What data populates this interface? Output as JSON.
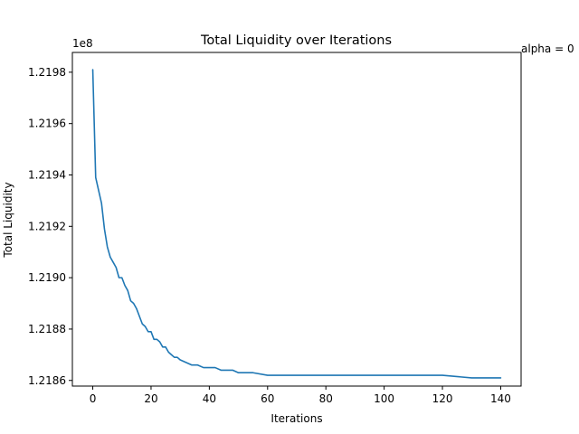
{
  "chart_data": {
    "type": "line",
    "title": "Total Liquidity over Iterations",
    "xlabel": "Iterations",
    "ylabel": "Total Liquidity",
    "y_offset_label": "1e8",
    "annotation": "alpha = 0",
    "xlim": [
      -7,
      147
    ],
    "ylim": [
      1.218578,
      1.219877
    ],
    "x_ticks": [
      0,
      20,
      40,
      60,
      80,
      100,
      120,
      140
    ],
    "x_tick_labels": [
      "0",
      "20",
      "40",
      "60",
      "80",
      "100",
      "120",
      "140"
    ],
    "y_ticks": [
      1.2186,
      1.2188,
      1.219,
      1.2192,
      1.2194,
      1.2196,
      1.2198
    ],
    "y_tick_labels": [
      "1.2186",
      "1.2188",
      "1.2190",
      "1.2192",
      "1.2194",
      "1.2196",
      "1.2198"
    ],
    "grid": false,
    "colors": {
      "line": "#1f77b4",
      "axes": "#000000",
      "background": "#ffffff"
    },
    "series": [
      {
        "x": [
          0,
          1,
          2,
          3,
          4,
          5,
          6,
          7,
          8,
          9,
          10,
          11,
          12,
          13,
          14,
          15,
          16,
          17,
          18,
          19,
          20,
          21,
          22,
          23,
          24,
          25,
          26,
          27,
          28,
          29,
          30,
          32,
          34,
          36,
          38,
          40,
          42,
          44,
          46,
          48,
          50,
          52,
          55,
          60,
          65,
          70,
          80,
          90,
          100,
          110,
          120,
          130,
          140
        ],
        "y": [
          1.21981,
          1.21939,
          1.21934,
          1.21929,
          1.21919,
          1.21912,
          1.21908,
          1.21906,
          1.21904,
          1.219,
          1.219,
          1.21897,
          1.21895,
          1.21891,
          1.2189,
          1.21888,
          1.21885,
          1.21882,
          1.21881,
          1.21879,
          1.21879,
          1.21876,
          1.21876,
          1.21875,
          1.21873,
          1.21873,
          1.21871,
          1.2187,
          1.21869,
          1.21869,
          1.21868,
          1.21867,
          1.21866,
          1.21866,
          1.21865,
          1.21865,
          1.21865,
          1.21864,
          1.21864,
          1.21864,
          1.21863,
          1.21863,
          1.21863,
          1.21862,
          1.21862,
          1.21862,
          1.21862,
          1.21862,
          1.21862,
          1.21862,
          1.21862,
          1.21861,
          1.21861
        ]
      }
    ]
  }
}
